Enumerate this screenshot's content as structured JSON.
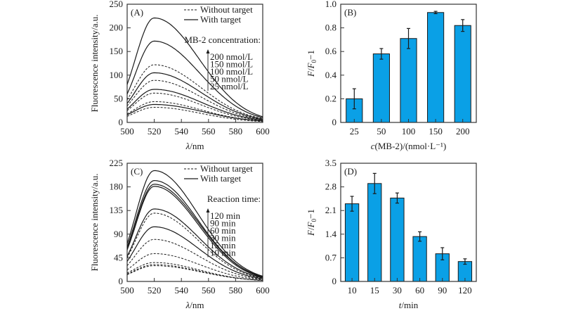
{
  "figure": {
    "bar_color": "#0aa0e6",
    "line_color": "#1a1a1a"
  },
  "chart_data": [
    {
      "id": "A",
      "panel_label": "(A)",
      "type": "line",
      "title": "",
      "xlabel_italic": "λ",
      "xlabel_rest": "/nm",
      "ylabel": "Fluorescence intensity/a.u.",
      "xlim": [
        500,
        600
      ],
      "ylim": [
        0,
        250
      ],
      "xticks": [
        500,
        520,
        540,
        560,
        580,
        600
      ],
      "yticks": [
        0,
        50,
        100,
        150,
        200,
        250
      ],
      "grid": false,
      "peak_wavelength": 520,
      "legend": {
        "position": "top-right",
        "entries": [
          {
            "label": "Without target",
            "style": "dashed"
          },
          {
            "label": "With target",
            "style": "solid"
          }
        ],
        "series_title": "MB-2 concentration:",
        "series_labels": [
          "200 nmol/L",
          "150 nmol/L",
          "100 nmol/L",
          "50 nmol/L",
          "25 nmol/L"
        ]
      },
      "series": [
        {
          "name": "With target, 200 nmol/L",
          "style": "solid",
          "peak": 221,
          "start": 80,
          "end": 12
        },
        {
          "name": "With target, 150 nmol/L",
          "style": "solid",
          "peak": 172,
          "start": 60,
          "end": 10
        },
        {
          "name": "Without target, 200 nmol/L",
          "style": "dashed",
          "peak": 122,
          "start": 48,
          "end": 8
        },
        {
          "name": "With target, 100 nmol/L",
          "style": "solid",
          "peak": 105,
          "start": 40,
          "end": 7
        },
        {
          "name": "Without target, 150 nmol/L",
          "style": "dashed",
          "peak": 89,
          "start": 35,
          "end": 6
        },
        {
          "name": "With target, 50 nmol/L",
          "style": "solid",
          "peak": 70,
          "start": 28,
          "end": 5
        },
        {
          "name": "Without target, 100 nmol/L",
          "style": "dashed",
          "peak": 62,
          "start": 25,
          "end": 4
        },
        {
          "name": "Without target, 50 nmol/L",
          "style": "dashed",
          "peak": 44,
          "start": 18,
          "end": 3
        },
        {
          "name": "With target, 25 nmol/L",
          "style": "solid",
          "peak": 38,
          "start": 16,
          "end": 3
        },
        {
          "name": "Without target, 25 nmol/L",
          "style": "dashed",
          "peak": 32,
          "start": 13,
          "end": 2
        }
      ]
    },
    {
      "id": "B",
      "panel_label": "(B)",
      "type": "bar",
      "title": "",
      "xlabel_italic": "c",
      "xlabel_rest": "(MB-2)/(nmol·L⁻¹)",
      "ylabel_parts": [
        "F",
        "/",
        "F",
        "0",
        "−1"
      ],
      "categories": [
        "25",
        "50",
        "100",
        "150",
        "200"
      ],
      "values": [
        0.2,
        0.58,
        0.71,
        0.93,
        0.82
      ],
      "errors": [
        0.085,
        0.045,
        0.085,
        0.01,
        0.05
      ],
      "ylim": [
        0,
        1.0
      ],
      "yticks": [
        "0",
        "0.2",
        "0.4",
        "0.6",
        "0.8",
        "1.0"
      ],
      "ytick_values": [
        0,
        0.2,
        0.4,
        0.6,
        0.8,
        1.0
      ],
      "grid": false
    },
    {
      "id": "C",
      "panel_label": "(C)",
      "type": "line",
      "title": "",
      "xlabel_italic": "λ",
      "xlabel_rest": "/nm",
      "ylabel": "Fluorescence intensity/a.u.",
      "xlim": [
        500,
        600
      ],
      "ylim": [
        0,
        225
      ],
      "xticks": [
        500,
        520,
        540,
        560,
        580,
        600
      ],
      "yticks": [
        0,
        45,
        90,
        135,
        180,
        225
      ],
      "grid": false,
      "peak_wavelength": 520,
      "legend": {
        "position": "top-right",
        "entries": [
          {
            "label": "Without target",
            "style": "dashed"
          },
          {
            "label": "With target",
            "style": "solid"
          }
        ],
        "series_title": "Reaction time:",
        "series_labels": [
          "120 min",
          "90 min",
          "60 min",
          "30 min",
          "15 min",
          "10 min"
        ]
      },
      "series": [
        {
          "name": "With target, 15 min",
          "style": "solid",
          "peak": 211,
          "start": 72,
          "end": 10
        },
        {
          "name": "With target, 30 min",
          "style": "solid",
          "peak": 192,
          "start": 66,
          "end": 9
        },
        {
          "name": "With target, 10 min",
          "style": "solid",
          "peak": 185,
          "start": 62,
          "end": 9
        },
        {
          "name": "With target, 60 min",
          "style": "solid",
          "peak": 181,
          "start": 60,
          "end": 8
        },
        {
          "name": "With target, 90 min",
          "style": "solid",
          "peak": 138,
          "start": 48,
          "end": 7
        },
        {
          "name": "Without target, 120 min",
          "style": "dashed",
          "peak": 130,
          "start": 45,
          "end": 6
        },
        {
          "name": "With target, 120 min",
          "style": "solid",
          "peak": 104,
          "start": 38,
          "end": 5
        },
        {
          "name": "Without target, 90 min",
          "style": "dashed",
          "peak": 80,
          "start": 30,
          "end": 4
        },
        {
          "name": "Without target, 60 min",
          "style": "dashed",
          "peak": 53,
          "start": 22,
          "end": 3
        },
        {
          "name": "Without target, 30 min",
          "style": "dashed",
          "peak": 36,
          "start": 16,
          "end": 2
        },
        {
          "name": "Without target, 15 min",
          "style": "dashed",
          "peak": 32,
          "start": 14,
          "end": 2
        },
        {
          "name": "Without target, 10 min",
          "style": "dashed",
          "peak": 30,
          "start": 13,
          "end": 2
        }
      ]
    },
    {
      "id": "D",
      "panel_label": "(D)",
      "type": "bar",
      "title": "",
      "xlabel_italic": "t",
      "xlabel_rest": "/min",
      "ylabel_parts": [
        "F",
        "/",
        "F",
        "0",
        "−1"
      ],
      "categories": [
        "10",
        "15",
        "30",
        "60",
        "90",
        "120"
      ],
      "values": [
        2.3,
        2.9,
        2.47,
        1.33,
        0.82,
        0.59
      ],
      "errors": [
        0.22,
        0.3,
        0.15,
        0.14,
        0.18,
        0.08
      ],
      "ylim": [
        0,
        3.5
      ],
      "yticks": [
        "0",
        "0.7",
        "1.4",
        "2.1",
        "2.8",
        "3.5"
      ],
      "ytick_values": [
        0,
        0.7,
        1.4,
        2.1,
        2.8,
        3.5
      ],
      "grid": false
    }
  ]
}
